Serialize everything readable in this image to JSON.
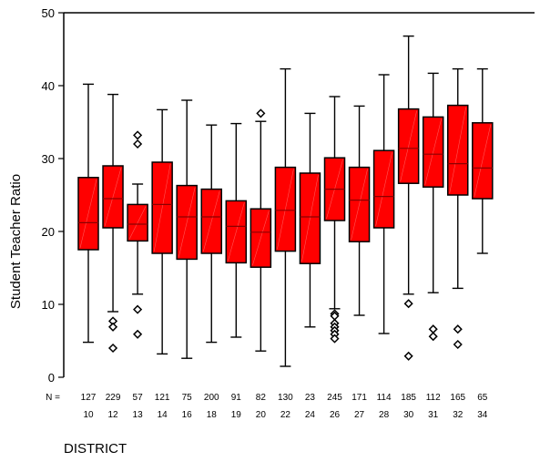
{
  "chart_data": {
    "type": "boxplot",
    "ylabel": "Student Teacher Ratio",
    "xlabel": "DISTRICT",
    "ylim": [
      0,
      50
    ],
    "yticks": [
      0,
      10,
      20,
      30,
      40,
      50
    ],
    "n_prefix": "N =",
    "box_color": "#ff0000",
    "grid": false,
    "groups": [
      {
        "district": "10",
        "n": "127",
        "min": 4.8,
        "q1": 17.5,
        "median": 21.2,
        "q3": 27.4,
        "max": 40.2,
        "outliers": []
      },
      {
        "district": "12",
        "n": "229",
        "min": 9.0,
        "q1": 20.5,
        "median": 24.5,
        "q3": 29.0,
        "max": 38.8,
        "outliers": [
          7.7,
          6.9,
          4.0
        ]
      },
      {
        "district": "13",
        "n": "57",
        "min": 11.4,
        "q1": 18.7,
        "median": 21.0,
        "q3": 23.7,
        "max": 26.5,
        "outliers": [
          33.2,
          32.0,
          9.3,
          5.9
        ]
      },
      {
        "district": "14",
        "n": "121",
        "min": 3.2,
        "q1": 17.0,
        "median": 23.7,
        "q3": 29.5,
        "max": 36.7,
        "outliers": []
      },
      {
        "district": "16",
        "n": "75",
        "min": 2.6,
        "q1": 16.2,
        "median": 22.0,
        "q3": 26.3,
        "max": 38.0,
        "outliers": []
      },
      {
        "district": "18",
        "n": "200",
        "min": 4.8,
        "q1": 17.0,
        "median": 22.0,
        "q3": 25.8,
        "max": 34.6,
        "outliers": []
      },
      {
        "district": "19",
        "n": "91",
        "min": 5.5,
        "q1": 15.7,
        "median": 20.7,
        "q3": 24.2,
        "max": 34.8,
        "outliers": []
      },
      {
        "district": "20",
        "n": "82",
        "min": 3.6,
        "q1": 15.1,
        "median": 19.9,
        "q3": 23.1,
        "max": 35.1,
        "outliers": [
          36.2
        ]
      },
      {
        "district": "22",
        "n": "130",
        "min": 1.5,
        "q1": 17.3,
        "median": 22.9,
        "q3": 28.8,
        "max": 42.3,
        "outliers": []
      },
      {
        "district": "24",
        "n": "23",
        "min": 6.9,
        "q1": 15.6,
        "median": 22.0,
        "q3": 28.0,
        "max": 36.2,
        "outliers": []
      },
      {
        "district": "26",
        "n": "245",
        "min": 9.4,
        "q1": 21.5,
        "median": 25.8,
        "q3": 30.1,
        "max": 38.5,
        "outliers": [
          8.7,
          8.4,
          7.4,
          6.9,
          6.4,
          5.9,
          5.3
        ]
      },
      {
        "district": "27",
        "n": "171",
        "min": 8.5,
        "q1": 18.6,
        "median": 24.3,
        "q3": 28.8,
        "max": 37.2,
        "outliers": []
      },
      {
        "district": "28",
        "n": "114",
        "min": 6.0,
        "q1": 20.5,
        "median": 24.8,
        "q3": 31.1,
        "max": 41.5,
        "outliers": []
      },
      {
        "district": "30",
        "n": "185",
        "min": 11.4,
        "q1": 26.6,
        "median": 31.4,
        "q3": 36.8,
        "max": 46.8,
        "outliers": [
          10.1,
          2.9
        ]
      },
      {
        "district": "31",
        "n": "112",
        "min": 11.6,
        "q1": 26.1,
        "median": 30.6,
        "q3": 35.7,
        "max": 41.7,
        "outliers": [
          6.6,
          5.6
        ]
      },
      {
        "district": "32",
        "n": "165",
        "min": 12.2,
        "q1": 25.0,
        "median": 29.3,
        "q3": 37.3,
        "max": 42.3,
        "outliers": [
          6.6,
          4.5
        ]
      },
      {
        "district": "34",
        "n": "65",
        "min": 17.0,
        "q1": 24.5,
        "median": 28.7,
        "q3": 34.9,
        "max": 42.3,
        "outliers": []
      }
    ]
  }
}
